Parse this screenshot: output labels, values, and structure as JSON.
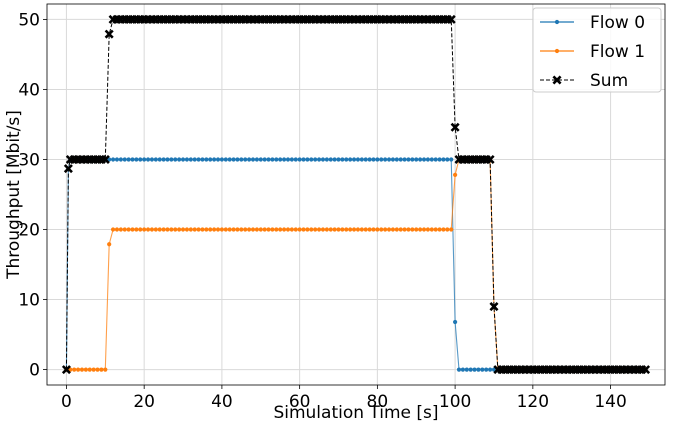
{
  "chart_data": {
    "type": "line",
    "xlabel": "Simulation Time [s]",
    "ylabel": "Throughput [Mbit/s]",
    "xlim": [
      -5,
      154
    ],
    "ylim": [
      -2.2,
      52.2
    ],
    "xticks": [
      0,
      20,
      40,
      60,
      80,
      100,
      120,
      140
    ],
    "yticks": [
      0,
      10,
      20,
      30,
      40,
      50
    ],
    "grid": true,
    "legend": "top-right",
    "series": [
      {
        "name": "Flow 0",
        "color": "#1f77b4",
        "marker": "dot",
        "linestyle": "solid",
        "segments": [
          {
            "from": 0,
            "to": 0,
            "value": 0
          },
          {
            "from": 0.5,
            "to": 0.5,
            "value": 28.7
          },
          {
            "from": 1,
            "to": 99,
            "value": 30
          },
          {
            "from": 100,
            "to": 100,
            "value": 6.8
          },
          {
            "from": 101,
            "to": 149,
            "value": 0
          }
        ]
      },
      {
        "name": "Flow 1",
        "color": "#ff7f0e",
        "marker": "dot",
        "linestyle": "solid",
        "segments": [
          {
            "from": 0,
            "to": 10,
            "value": 0
          },
          {
            "from": 11,
            "to": 11,
            "value": 17.9
          },
          {
            "from": 12,
            "to": 99,
            "value": 20
          },
          {
            "from": 100,
            "to": 100,
            "value": 27.8
          },
          {
            "from": 101,
            "to": 109,
            "value": 30
          },
          {
            "from": 110,
            "to": 110,
            "value": 9
          },
          {
            "from": 111,
            "to": 149,
            "value": 0
          }
        ]
      },
      {
        "name": "Sum",
        "color": "#000000",
        "marker": "x",
        "linestyle": "dashed",
        "segments": [
          {
            "from": 0,
            "to": 0,
            "value": 0
          },
          {
            "from": 0.5,
            "to": 0.5,
            "value": 28.7
          },
          {
            "from": 1,
            "to": 10,
            "value": 30
          },
          {
            "from": 11,
            "to": 11,
            "value": 47.9
          },
          {
            "from": 12,
            "to": 99,
            "value": 50
          },
          {
            "from": 100,
            "to": 100,
            "value": 34.6
          },
          {
            "from": 101,
            "to": 109,
            "value": 30
          },
          {
            "from": 110,
            "to": 110,
            "value": 9
          },
          {
            "from": 111,
            "to": 149,
            "value": 0
          }
        ]
      }
    ]
  }
}
